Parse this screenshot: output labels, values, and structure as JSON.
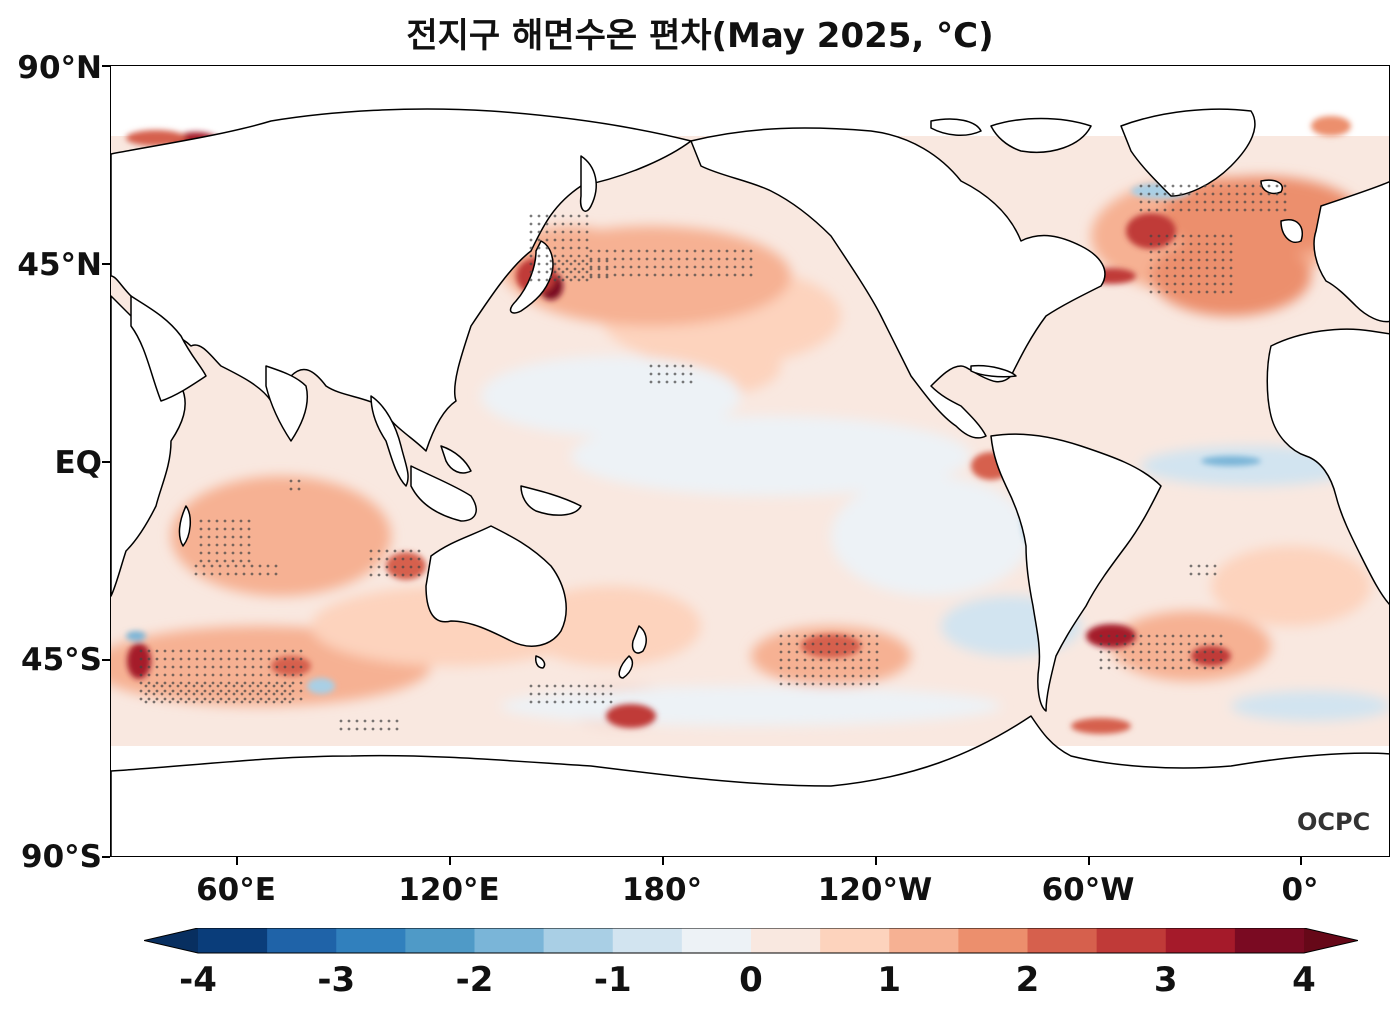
{
  "title": "전지구 해면수온 편차(May 2025, °C)",
  "logo_text": "OCPC",
  "lat_labels": [
    {
      "text": "90°N",
      "lat": 90
    },
    {
      "text": "45°N",
      "lat": 45
    },
    {
      "text": "EQ",
      "lat": 0
    },
    {
      "text": "45°S",
      "lat": -45
    },
    {
      "text": "90°S",
      "lat": -90
    }
  ],
  "lon_labels": [
    {
      "text": "60°E",
      "lon": 60
    },
    {
      "text": "120°E",
      "lon": 120
    },
    {
      "text": "180°",
      "lon": 180
    },
    {
      "text": "120°W",
      "lon": 240
    },
    {
      "text": "60°W",
      "lon": 300
    },
    {
      "text": "0°",
      "lon": 360
    }
  ],
  "colorbar": {
    "min": -4,
    "max": 4,
    "step": 0.5,
    "extend": "both",
    "tick_labels": [
      "-4",
      "-3",
      "-2",
      "-1",
      "0",
      "1",
      "2",
      "3",
      "4"
    ],
    "colors": [
      "#0a3d7a",
      "#1f63a8",
      "#3180bd",
      "#4f9ac7",
      "#7ab5d8",
      "#a9cfe5",
      "#d2e4f0",
      "#edf2f6",
      "#f9e8e0",
      "#fdd3bd",
      "#f6b193",
      "#ec8f6d",
      "#d6604d",
      "#c03a38",
      "#a51a2a",
      "#7a0a22"
    ],
    "under_color": "#082f60",
    "over_color": "#660818"
  },
  "map": {
    "projection": "PlateCarree",
    "central_longitude": 180,
    "lon_range": [
      30,
      390
    ],
    "lat_range": [
      -90,
      90
    ],
    "features": [
      "coastlines",
      "stippling-significance"
    ]
  }
}
